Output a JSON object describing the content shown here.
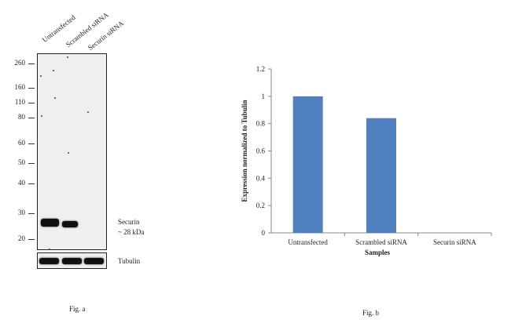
{
  "blot": {
    "lane_labels": [
      "Untransfected",
      "Scrambled siRNA",
      "Securin siRNA"
    ],
    "mw_markers": [
      "260",
      "160",
      "110",
      "80",
      "60",
      "50",
      "40",
      "30",
      "20"
    ],
    "band_label": "Securin",
    "band_size": "~ 28 kDa",
    "loading_control": "Tubulin",
    "caption": "Fig. a"
  },
  "chart_data": {
    "type": "bar",
    "categories": [
      "Untransfected",
      "Scrambled siRNA",
      "Securin siRNA"
    ],
    "values": [
      1.0,
      0.84,
      0.0
    ],
    "title": "",
    "xlabel": "Samples",
    "ylabel": "Expression normalized to Tubulin",
    "ylim": [
      0,
      1.2
    ],
    "yticks": [
      "0",
      "0.2",
      "0.4",
      "0.6",
      "0.8",
      "1",
      "1.2"
    ],
    "bar_color": "#4f7fbd",
    "grid": false,
    "legend": "none"
  },
  "chart_caption": "Fig. b"
}
